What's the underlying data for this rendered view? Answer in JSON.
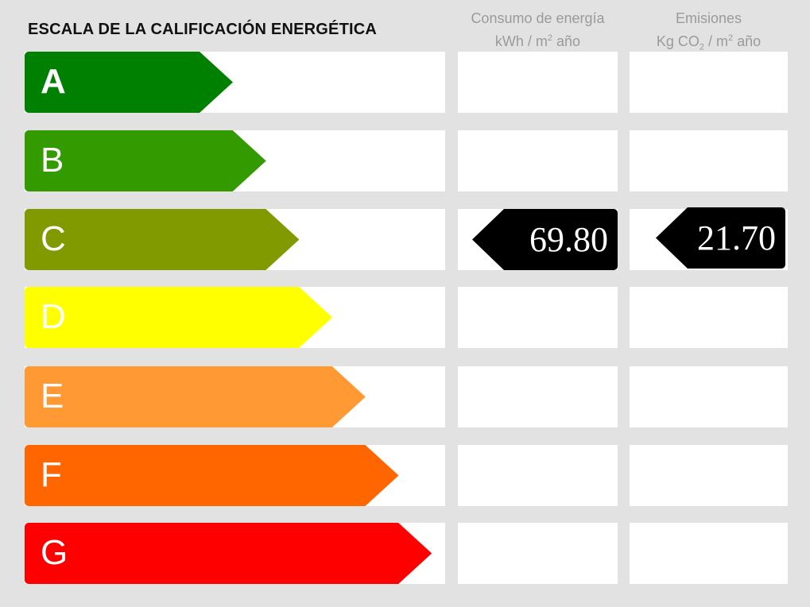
{
  "title": "ESCALA DE LA CALIFICACIÓN ENERGÉTICA",
  "columns": {
    "energy": {
      "line1": "Consumo de energía",
      "unit_pre": "kWh / m",
      "unit_sup": "2",
      "unit_post": " año"
    },
    "emissions": {
      "line1": "Emisiones",
      "unit_pre": "Kg CO",
      "unit_sub": "2",
      "unit_mid": " / m",
      "unit_sup": "2",
      "unit_post": " año"
    }
  },
  "ratings": [
    {
      "letter": "A",
      "color": "#008000"
    },
    {
      "letter": "B",
      "color": "#339a00"
    },
    {
      "letter": "C",
      "color": "#809a00"
    },
    {
      "letter": "D",
      "color": "#ffff00"
    },
    {
      "letter": "E",
      "color": "#ff9933"
    },
    {
      "letter": "F",
      "color": "#ff6600"
    },
    {
      "letter": "G",
      "color": "#ff0000"
    }
  ],
  "result": {
    "energy_rating": "C",
    "energy_value": "69.80",
    "emissions_rating": "C",
    "emissions_value": "21.70",
    "marker_color": "#000000"
  }
}
